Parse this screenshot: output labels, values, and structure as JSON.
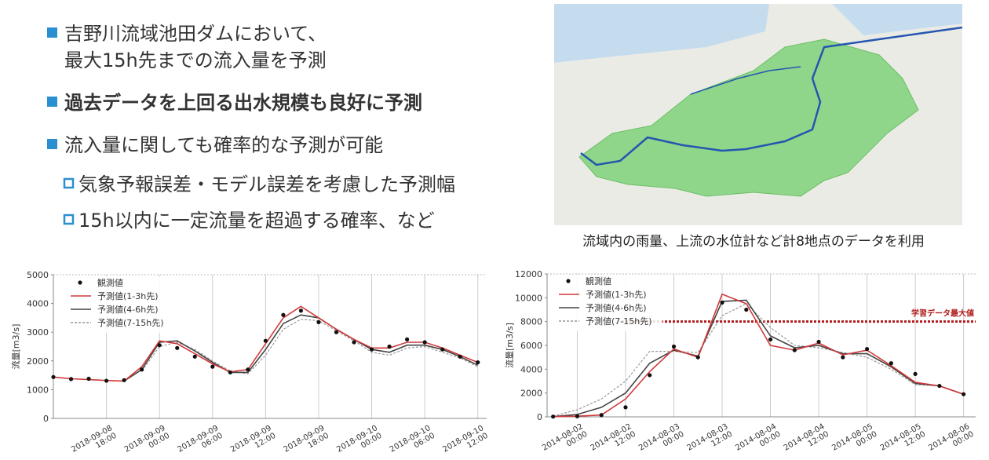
{
  "slide": {
    "bullets": [
      {
        "lines": [
          "吉野川流域池田ダムにおいて、",
          "最大15h先までの流入量を予測"
        ]
      },
      {
        "lines": [
          "過去データを上回る出水規模も良好に予測"
        ]
      },
      {
        "lines": [
          "流入量に関しても確率的な予測が可能"
        ]
      }
    ],
    "sub_bullets": [
      "気象予報誤差・モデル誤差を考慮した予測幅",
      "15h以内に一定流量を超過する確率、など"
    ],
    "map_caption": "流域内の雨量、上流の水位計など計8地点のデータを利用"
  },
  "chart_data": [
    {
      "type": "line",
      "y_label": "流量[m3/s]",
      "x": [
        0,
        2,
        4,
        6,
        8,
        10,
        12,
        14,
        16,
        18,
        20,
        22,
        24,
        26,
        28,
        30,
        32,
        34,
        36,
        38,
        40,
        42,
        44,
        46,
        48
      ],
      "xlim": [
        0,
        49
      ],
      "xticks": [
        {
          "value": 6,
          "label": [
            "2018-09-08",
            "18:00"
          ]
        },
        {
          "value": 12,
          "label": [
            "2018-09-09",
            "00:00"
          ]
        },
        {
          "value": 18,
          "label": [
            "2018-09-09",
            "06:00"
          ]
        },
        {
          "value": 24,
          "label": [
            "2018-09-09",
            "12:00"
          ]
        },
        {
          "value": 30,
          "label": [
            "2018-09-09",
            "18:00"
          ]
        },
        {
          "value": 36,
          "label": [
            "2018-09-10",
            "00:00"
          ]
        },
        {
          "value": 42,
          "label": [
            "2018-09-10",
            "06:00"
          ]
        },
        {
          "value": 48,
          "label": [
            "2018-09-10",
            "12:00"
          ]
        }
      ],
      "ylim": [
        0,
        5000
      ],
      "yticks": [
        0,
        1000,
        2000,
        3000,
        4000,
        5000
      ],
      "grid": true,
      "series": [
        {
          "name": "観測値",
          "color": "#111111",
          "mode": "markers",
          "values": [
            1440,
            1370,
            1380,
            1310,
            1330,
            1700,
            2550,
            2450,
            2150,
            1800,
            1600,
            1700,
            2700,
            3600,
            3750,
            3350,
            3000,
            2650,
            2400,
            2500,
            2750,
            2650,
            2400,
            2150,
            1950
          ]
        },
        {
          "name": "予測値(1-3h先)",
          "color": "#d0393b",
          "mode": "lines",
          "values": [
            1440,
            1380,
            1350,
            1320,
            1300,
            1800,
            2700,
            2600,
            2250,
            1900,
            1620,
            1700,
            2600,
            3500,
            3900,
            3500,
            3100,
            2750,
            2450,
            2450,
            2650,
            2650,
            2450,
            2200,
            1950
          ]
        },
        {
          "name": "予測値(4-6h先)",
          "color": "#444444",
          "mode": "lines",
          "values": [
            null,
            null,
            null,
            null,
            1300,
            1700,
            2650,
            2700,
            2350,
            1950,
            1600,
            1600,
            2400,
            3300,
            3600,
            3500,
            3100,
            2750,
            2400,
            2300,
            2550,
            2550,
            2400,
            2150,
            1850
          ]
        },
        {
          "name": "予測値(7-15h先)",
          "color": "#999999",
          "mode": "dashed",
          "values": [
            null,
            null,
            null,
            null,
            null,
            1650,
            2500,
            2650,
            2400,
            2000,
            1650,
            1550,
            2200,
            3100,
            3450,
            3400,
            3050,
            2700,
            2300,
            2200,
            2450,
            2500,
            2300,
            2100,
            1800
          ]
        }
      ]
    },
    {
      "type": "line",
      "y_label": "流量[m3/s]",
      "x": [
        -6,
        0,
        6,
        12,
        18,
        24,
        30,
        36,
        42,
        48,
        54,
        60,
        66,
        72,
        78,
        84,
        90,
        96
      ],
      "xlim": [
        -7.5,
        99
      ],
      "xticks": [
        {
          "value": 0,
          "label": [
            "2014-08-02",
            "00:00"
          ]
        },
        {
          "value": 12,
          "label": [
            "2014-08-02",
            "12:00"
          ]
        },
        {
          "value": 24,
          "label": [
            "2014-08-03",
            "00:00"
          ]
        },
        {
          "value": 36,
          "label": [
            "2014-08-03",
            "12:00"
          ]
        },
        {
          "value": 48,
          "label": [
            "2014-08-04",
            "00:00"
          ]
        },
        {
          "value": 60,
          "label": [
            "2014-08-04",
            "12:00"
          ]
        },
        {
          "value": 72,
          "label": [
            "2014-08-05",
            "00:00"
          ]
        },
        {
          "value": 84,
          "label": [
            "2014-08-05",
            "12:00"
          ]
        },
        {
          "value": 96,
          "label": [
            "2014-08-06",
            "00:00"
          ]
        }
      ],
      "ylim": [
        0,
        12000
      ],
      "yticks": [
        0,
        2000,
        4000,
        6000,
        8000,
        10000,
        12000
      ],
      "grid": true,
      "reference_line": {
        "value": 8000,
        "label": "学習データ最大値",
        "color": "#b01c1c"
      },
      "series": [
        {
          "name": "観測値",
          "color": "#111111",
          "mode": "markers",
          "values": [
            20,
            50,
            150,
            800,
            3500,
            5900,
            5000,
            9600,
            9000,
            6500,
            5600,
            6300,
            5000,
            5700,
            4500,
            3600,
            2600,
            1900
          ]
        },
        {
          "name": "予測値(1-3h先)",
          "color": "#d0393b",
          "mode": "lines",
          "values": [
            20,
            50,
            150,
            1500,
            3800,
            5700,
            5000,
            10300,
            9500,
            6000,
            5600,
            6200,
            5200,
            5600,
            4300,
            2900,
            2600,
            1900
          ]
        },
        {
          "name": "予測値(4-6h先)",
          "color": "#444444",
          "mode": "lines",
          "values": [
            20,
            200,
            800,
            2000,
            4500,
            5600,
            5100,
            9700,
            9800,
            6800,
            5800,
            6000,
            5300,
            5300,
            4200,
            2800,
            2600,
            1900
          ]
        },
        {
          "name": "予測値(7-15h先)",
          "color": "#999999",
          "mode": "dashed",
          "values": [
            50,
            600,
            1500,
            3000,
            5500,
            5500,
            5400,
            8500,
            9500,
            7500,
            6000,
            5800,
            5400,
            5000,
            4000,
            2700,
            2600,
            1900
          ]
        }
      ]
    }
  ]
}
